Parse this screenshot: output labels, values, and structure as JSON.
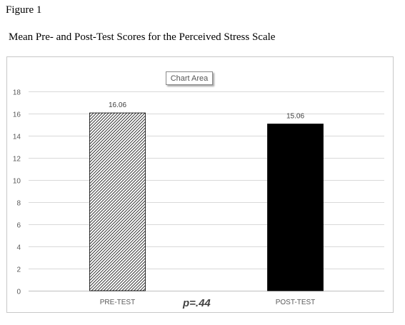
{
  "figure": {
    "label": "Figure 1",
    "title": "Mean Pre- and Post-Test Scores for the Perceived Stress Scale"
  },
  "tooltip": {
    "text": "Chart Area"
  },
  "annotation": {
    "significance": "p=.44"
  },
  "colors": {
    "gridline": "#d9d9d9",
    "axis_text": "#595959",
    "post_test_bar": "#000000",
    "pre_test_bar_pattern": "diagonal black hatch on white"
  },
  "chart_data": {
    "type": "bar",
    "categories": [
      "PRE-TEST",
      "POST-TEST"
    ],
    "values": [
      16.06,
      15.06
    ],
    "data_labels": [
      "16.06",
      "15.06"
    ],
    "title": "",
    "xlabel": "",
    "ylabel": "",
    "ylim": [
      0,
      18
    ],
    "yticks": [
      0,
      2,
      4,
      6,
      8,
      10,
      12,
      14,
      16,
      18
    ],
    "grid": true,
    "legend": "none",
    "bar_fills": [
      "hatched",
      "solid-black"
    ]
  }
}
